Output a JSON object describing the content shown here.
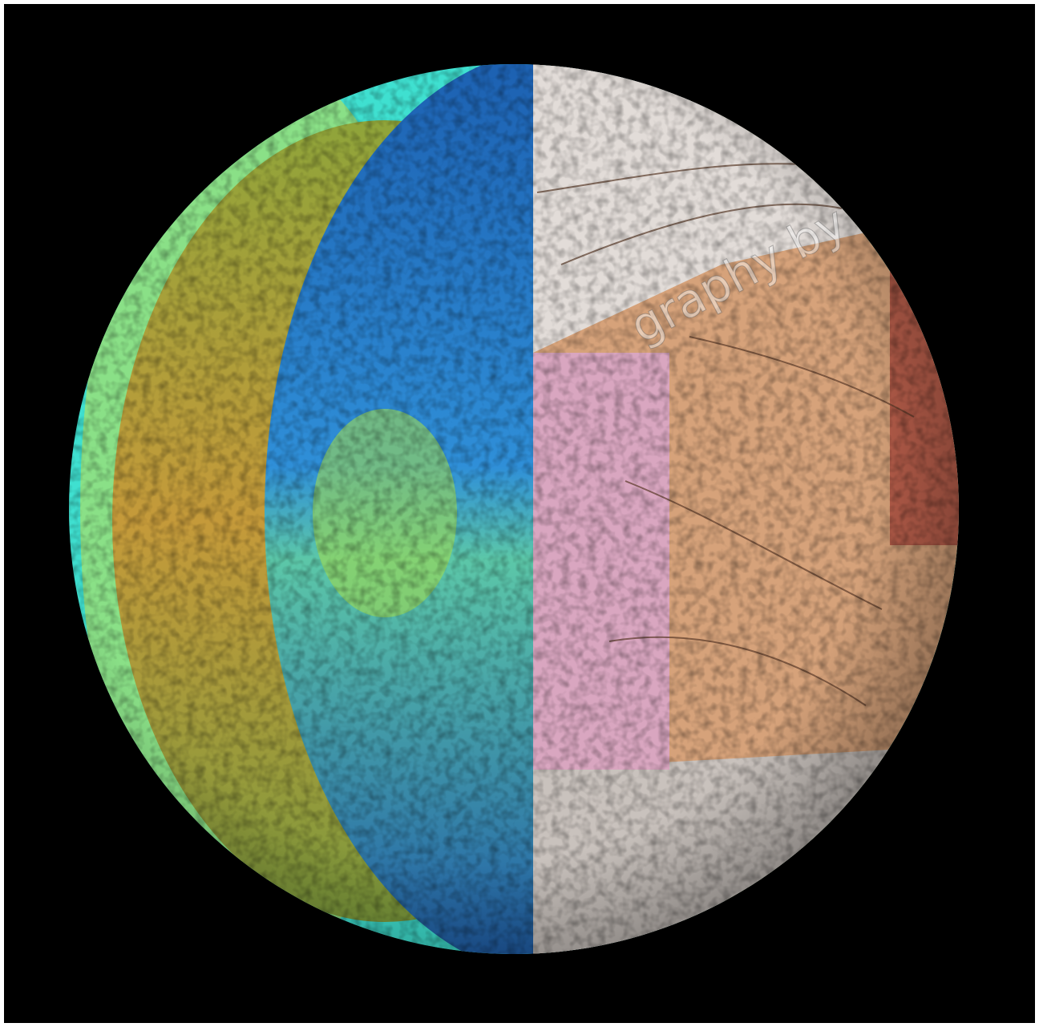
{
  "watermark": "graphy by"
}
